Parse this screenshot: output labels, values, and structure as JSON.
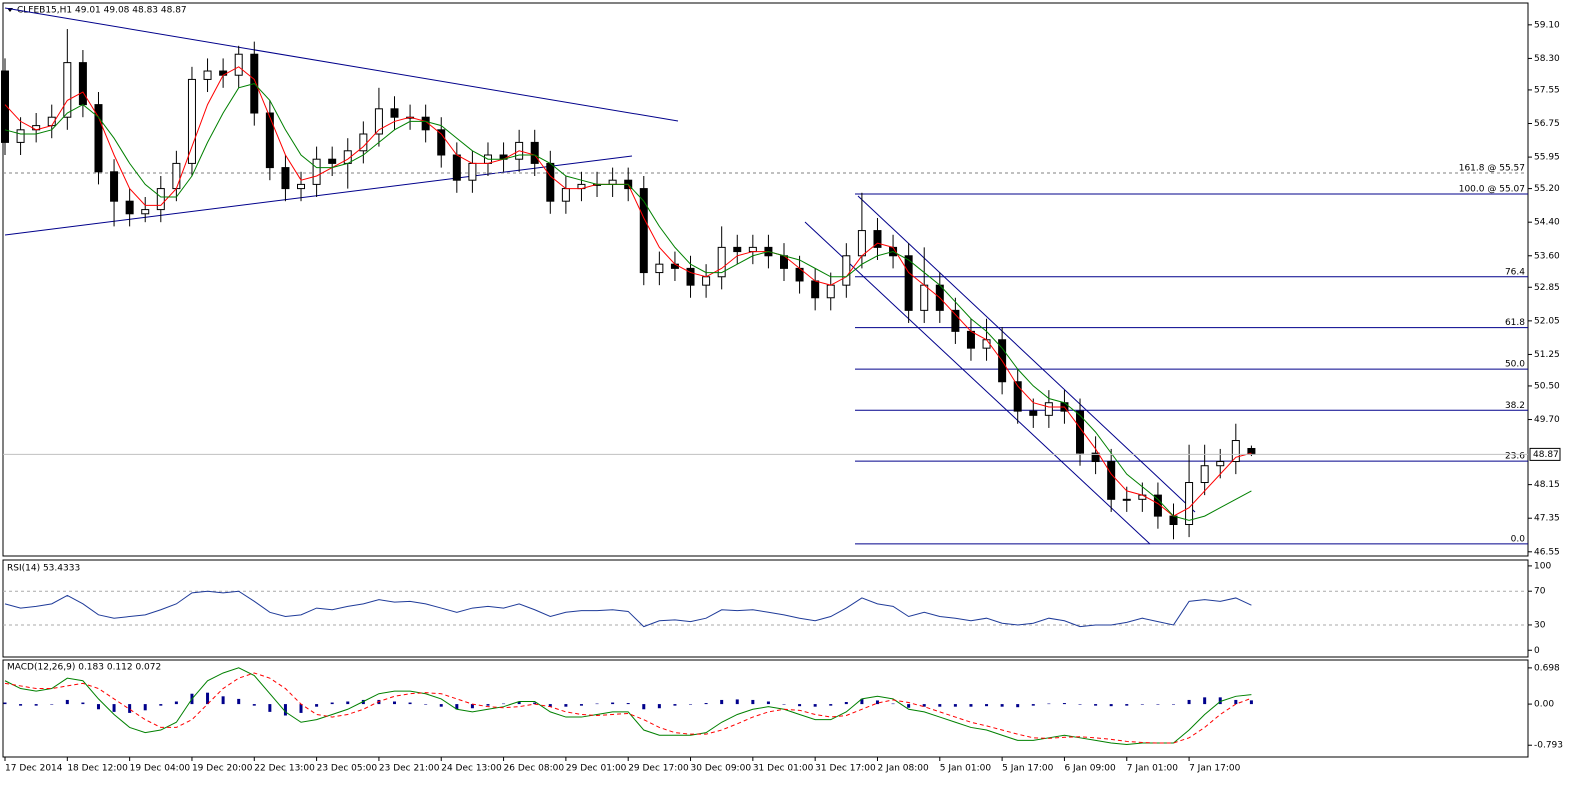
{
  "chart_data": [
    {
      "type": "candlestick",
      "title": "CLFEB15,H1  49.01 49.08 48.83 48.87",
      "categories": [
        "17 Dec 2014",
        null,
        null,
        null,
        "18 Dec 12:00",
        null,
        null,
        null,
        "19 Dec 04:00",
        null,
        null,
        null,
        "19 Dec 20:00",
        null,
        null,
        null,
        "22 Dec 13:00",
        null,
        null,
        null,
        "23 Dec 05:00",
        null,
        null,
        null,
        "23 Dec 21:00",
        null,
        null,
        null,
        "24 Dec 13:00",
        null,
        null,
        null,
        "26 Dec 08:00",
        null,
        null,
        null,
        "29 Dec 01:00",
        null,
        null,
        null,
        "29 Dec 17:00",
        null,
        null,
        null,
        "30 Dec 09:00",
        null,
        null,
        null,
        "31 Dec 01:00",
        null,
        null,
        null,
        "31 Dec 17:00",
        null,
        null,
        null,
        "2 Jan 08:00",
        null,
        null,
        null,
        "5 Jan 01:00",
        null,
        null,
        null,
        "5 Jan 17:00",
        null,
        null,
        null,
        "6 Jan 09:00",
        null,
        null,
        null,
        "7 Jan 01:00",
        null,
        null,
        null,
        "7 Jan 17:00",
        null,
        null,
        null,
        null
      ],
      "open": [
        58.0,
        56.3,
        56.6,
        56.7,
        56.9,
        58.2,
        57.2,
        55.6,
        54.9,
        54.6,
        54.7,
        55.2,
        55.8,
        57.8,
        58.0,
        57.9,
        58.4,
        57.0,
        55.7,
        55.2,
        55.3,
        55.9,
        55.8,
        56.1,
        56.5,
        57.1,
        56.9,
        56.9,
        56.6,
        56.0,
        55.4,
        55.8,
        56.0,
        55.9,
        56.3,
        55.8,
        54.9,
        55.2,
        55.3,
        55.3,
        55.4,
        55.2,
        53.2,
        53.4,
        53.3,
        52.9,
        53.1,
        53.8,
        53.7,
        53.8,
        53.6,
        53.3,
        53.0,
        52.6,
        52.9,
        53.6,
        54.2,
        53.8,
        53.6,
        52.3,
        52.9,
        52.3,
        51.8,
        51.4,
        51.6,
        50.6,
        49.9,
        49.8,
        50.1,
        49.9,
        48.9,
        48.7,
        47.8,
        47.8,
        47.9,
        47.4,
        47.2,
        48.2,
        48.6,
        48.7,
        49.01
      ],
      "high": [
        58.3,
        56.9,
        57.0,
        57.2,
        59.0,
        58.5,
        57.5,
        55.9,
        55.2,
        55.0,
        55.5,
        56.1,
        58.1,
        58.3,
        58.3,
        58.6,
        58.7,
        57.3,
        56.0,
        55.6,
        56.2,
        56.2,
        56.4,
        56.8,
        57.6,
        57.4,
        57.2,
        57.2,
        56.9,
        56.3,
        56.1,
        56.3,
        56.3,
        56.6,
        56.6,
        56.1,
        55.5,
        55.6,
        55.6,
        55.7,
        55.7,
        55.5,
        53.7,
        53.7,
        53.6,
        53.4,
        54.3,
        54.1,
        54.1,
        54.1,
        53.9,
        53.6,
        53.3,
        53.2,
        53.9,
        55.1,
        54.5,
        54.1,
        53.9,
        53.8,
        53.2,
        52.6,
        52.1,
        52.1,
        51.9,
        50.9,
        50.2,
        50.4,
        50.4,
        50.2,
        49.3,
        49.0,
        48.1,
        48.2,
        48.2,
        47.7,
        49.1,
        49.1,
        49.0,
        49.6,
        49.08
      ],
      "low": [
        56.0,
        56.0,
        56.3,
        56.4,
        56.6,
        56.9,
        55.3,
        54.3,
        54.3,
        54.4,
        54.4,
        54.9,
        55.5,
        57.5,
        57.6,
        57.6,
        56.7,
        55.4,
        54.9,
        54.9,
        55.0,
        55.5,
        55.2,
        55.8,
        56.2,
        56.6,
        56.6,
        56.3,
        55.7,
        55.1,
        55.1,
        55.5,
        55.6,
        55.6,
        55.5,
        54.6,
        54.6,
        54.9,
        55.0,
        55.0,
        54.9,
        52.9,
        52.9,
        53.0,
        52.6,
        52.6,
        52.8,
        53.4,
        53.4,
        53.3,
        53.0,
        52.7,
        52.3,
        52.3,
        52.6,
        53.3,
        53.5,
        53.3,
        52.0,
        52.0,
        52.0,
        51.5,
        51.1,
        51.1,
        50.3,
        49.6,
        49.5,
        49.5,
        49.6,
        48.6,
        48.4,
        47.5,
        47.5,
        47.5,
        47.1,
        46.85,
        46.9,
        47.9,
        48.3,
        48.4,
        48.83
      ],
      "close": [
        56.3,
        56.6,
        56.7,
        56.9,
        58.2,
        57.2,
        55.6,
        54.9,
        54.6,
        54.7,
        55.2,
        55.8,
        57.8,
        58.0,
        57.9,
        58.4,
        57.0,
        55.7,
        55.2,
        55.3,
        55.9,
        55.8,
        56.1,
        56.5,
        57.1,
        56.9,
        56.9,
        56.6,
        56.0,
        55.4,
        55.8,
        56.0,
        55.9,
        56.3,
        55.8,
        54.9,
        55.2,
        55.3,
        55.3,
        55.4,
        55.2,
        53.2,
        53.4,
        53.3,
        52.9,
        53.1,
        53.8,
        53.7,
        53.8,
        53.6,
        53.3,
        53.0,
        52.6,
        52.9,
        53.6,
        54.2,
        53.8,
        53.6,
        52.3,
        52.9,
        52.3,
        51.8,
        51.4,
        51.6,
        50.6,
        49.9,
        49.8,
        50.1,
        49.9,
        48.9,
        48.7,
        47.8,
        47.8,
        47.9,
        47.4,
        47.2,
        48.2,
        48.6,
        48.7,
        49.2,
        48.87
      ],
      "overlays": [
        {
          "color": "#ff0000",
          "values": [
            57.2,
            56.8,
            56.6,
            56.7,
            57.3,
            57.5,
            56.9,
            56.0,
            55.2,
            54.8,
            54.8,
            55.2,
            56.2,
            57.2,
            57.9,
            58.1,
            57.8,
            56.9,
            56.0,
            55.4,
            55.5,
            55.7,
            55.9,
            56.2,
            56.6,
            56.8,
            56.9,
            56.8,
            56.5,
            56.0,
            55.8,
            55.8,
            55.9,
            56.1,
            56.0,
            55.5,
            55.2,
            55.2,
            55.3,
            55.3,
            55.3,
            54.5,
            53.8,
            53.4,
            53.2,
            53.1,
            53.3,
            53.6,
            53.7,
            53.7,
            53.6,
            53.3,
            53.0,
            52.9,
            53.1,
            53.6,
            53.9,
            53.8,
            53.2,
            52.9,
            52.6,
            52.2,
            51.8,
            51.6,
            51.1,
            50.5,
            50.1,
            50.0,
            50.0,
            49.5,
            49.0,
            48.4,
            48.0,
            47.9,
            47.7,
            47.4,
            47.6,
            48.0,
            48.4,
            48.8,
            48.9
          ]
        },
        {
          "color": "#008000",
          "values": [
            56.6,
            56.5,
            56.5,
            56.6,
            57.0,
            57.2,
            56.9,
            56.4,
            55.8,
            55.3,
            55.0,
            55.0,
            55.5,
            56.3,
            57.0,
            57.6,
            57.7,
            57.3,
            56.6,
            56.0,
            55.7,
            55.7,
            55.8,
            56.0,
            56.3,
            56.6,
            56.8,
            56.8,
            56.7,
            56.4,
            56.1,
            55.9,
            55.9,
            56.0,
            56.0,
            55.8,
            55.5,
            55.4,
            55.3,
            55.3,
            55.3,
            54.9,
            54.3,
            53.8,
            53.4,
            53.2,
            53.2,
            53.4,
            53.6,
            53.7,
            53.6,
            53.5,
            53.3,
            53.1,
            53.1,
            53.4,
            53.6,
            53.7,
            53.5,
            53.2,
            52.9,
            52.5,
            52.1,
            51.8,
            51.4,
            50.9,
            50.5,
            50.2,
            50.1,
            49.8,
            49.4,
            48.9,
            48.4,
            48.1,
            47.8,
            47.4,
            47.3,
            47.4,
            47.6,
            47.8,
            48.0
          ]
        }
      ],
      "ylim": [
        46.45,
        59.62
      ],
      "yticks": [
        {
          "value": 59.1,
          "label": "59.10"
        },
        {
          "value": 58.3,
          "label": "58.30"
        },
        57.55,
        56.75,
        55.95,
        {
          "value": 55.2,
          "label": "55.20"
        },
        {
          "value": 54.4,
          "label": "54.40"
        },
        {
          "value": 53.6,
          "label": "53.60"
        },
        52.85,
        52.05,
        51.25,
        {
          "value": 50.5,
          "label": "50.50"
        },
        {
          "value": 49.7,
          "label": "49.70"
        },
        48.15,
        47.35,
        46.55
      ],
      "levels": [
        {
          "label": "161.8 @ 55.57",
          "value": 55.57,
          "style": "dashed"
        },
        {
          "label": "100.0 @ 55.07",
          "value": 55.07,
          "style": "solid"
        },
        {
          "label": "76.4",
          "value": 53.1,
          "style": "solid"
        },
        {
          "label": "61.8",
          "value": 51.89,
          "style": "solid"
        },
        {
          "label": "50.0",
          "value": 50.9,
          "style": "solid"
        },
        {
          "label": "38.2",
          "value": 49.92,
          "style": "solid"
        },
        {
          "label": "23.6",
          "value": 48.71,
          "style": "solid"
        },
        {
          "label": "0.0",
          "value": 46.74,
          "style": "solid"
        }
      ]
    },
    {
      "type": "line",
      "title": "RSI(14) 53.4333",
      "color": "#1f3b99",
      "values": [
        55,
        50,
        52,
        55,
        65,
        55,
        42,
        38,
        40,
        42,
        48,
        55,
        68,
        70,
        68,
        70,
        58,
        45,
        40,
        42,
        50,
        48,
        52,
        55,
        60,
        57,
        58,
        55,
        50,
        45,
        50,
        52,
        50,
        55,
        48,
        40,
        45,
        47,
        47,
        48,
        46,
        28,
        35,
        36,
        34,
        38,
        48,
        47,
        48,
        45,
        42,
        38,
        35,
        40,
        50,
        62,
        55,
        52,
        40,
        45,
        40,
        38,
        35,
        38,
        32,
        30,
        32,
        38,
        35,
        28,
        30,
        30,
        33,
        38,
        34,
        30,
        58,
        60,
        58,
        62,
        53.4333
      ],
      "ylim": [
        -8,
        107
      ],
      "yticks": [
        100,
        70,
        30,
        0
      ],
      "levels": [
        70,
        30
      ]
    },
    {
      "type": "macd",
      "title": "MACD(12,26,9) 0.183 0.112 0.072",
      "color": "#00008b",
      "histogram": [
        0.03,
        -0.03,
        -0.03,
        0,
        0.08,
        0.03,
        -0.1,
        -0.15,
        -0.17,
        -0.12,
        -0.03,
        0.05,
        0.2,
        0.22,
        0.15,
        0.1,
        -0.03,
        -0.15,
        -0.22,
        -0.17,
        -0.05,
        0.03,
        0.05,
        0.08,
        0.08,
        0.05,
        0.03,
        -0.01,
        -0.05,
        -0.1,
        -0.08,
        -0.03,
        0.01,
        0.05,
        0.03,
        -0.05,
        -0.05,
        -0.03,
        0.01,
        0.03,
        0.02,
        -0.1,
        -0.08,
        -0.03,
        -0.01,
        0.02,
        0.08,
        0.09,
        0.08,
        0.05,
        0,
        -0.04,
        -0.05,
        -0.03,
        0.04,
        0.1,
        0.07,
        0.01,
        -0.07,
        -0.05,
        -0.05,
        -0.05,
        -0.05,
        -0.04,
        -0.05,
        -0.06,
        -0.03,
        0.01,
        0.02,
        -0.01,
        -0.03,
        -0.04,
        -0.03,
        -0.01,
        0,
        0,
        0.08,
        0.13,
        0.13,
        0.08,
        0.072
      ],
      "series": [
        {
          "color": "#008000",
          "dash": false,
          "values": [
            0.45,
            0.3,
            0.25,
            0.3,
            0.5,
            0.45,
            0.1,
            -0.2,
            -0.45,
            -0.55,
            -0.5,
            -0.35,
            0.1,
            0.45,
            0.6,
            0.7,
            0.55,
            0.2,
            -0.15,
            -0.35,
            -0.3,
            -0.2,
            -0.1,
            0.05,
            0.2,
            0.25,
            0.25,
            0.2,
            0.1,
            -0.1,
            -0.15,
            -0.1,
            -0.05,
            0.05,
            0.05,
            -0.15,
            -0.25,
            -0.25,
            -0.2,
            -0.15,
            -0.15,
            -0.5,
            -0.6,
            -0.6,
            -0.6,
            -0.55,
            -0.35,
            -0.2,
            -0.1,
            -0.05,
            -0.1,
            -0.2,
            -0.3,
            -0.3,
            -0.15,
            0.1,
            0.15,
            0.1,
            -0.1,
            -0.15,
            -0.25,
            -0.35,
            -0.45,
            -0.5,
            -0.6,
            -0.7,
            -0.7,
            -0.65,
            -0.6,
            -0.65,
            -0.7,
            -0.75,
            -0.78,
            -0.75,
            -0.75,
            -0.75,
            -0.5,
            -0.2,
            0.05,
            0.15,
            0.183
          ]
        },
        {
          "color": "#ff0000",
          "dash": true,
          "values": [
            0.4,
            0.35,
            0.3,
            0.3,
            0.35,
            0.4,
            0.3,
            0.1,
            -0.1,
            -0.3,
            -0.45,
            -0.45,
            -0.3,
            0.0,
            0.3,
            0.5,
            0.6,
            0.5,
            0.3,
            0.0,
            -0.2,
            -0.25,
            -0.2,
            -0.1,
            0.05,
            0.15,
            0.2,
            0.22,
            0.2,
            0.1,
            0.0,
            -0.05,
            -0.07,
            -0.05,
            0.0,
            -0.05,
            -0.15,
            -0.2,
            -0.22,
            -0.2,
            -0.18,
            -0.3,
            -0.45,
            -0.55,
            -0.58,
            -0.58,
            -0.5,
            -0.38,
            -0.25,
            -0.15,
            -0.1,
            -0.12,
            -0.2,
            -0.25,
            -0.22,
            -0.1,
            0.02,
            0.08,
            0.03,
            -0.05,
            -0.15,
            -0.25,
            -0.35,
            -0.42,
            -0.5,
            -0.58,
            -0.65,
            -0.66,
            -0.64,
            -0.63,
            -0.65,
            -0.68,
            -0.72,
            -0.74,
            -0.75,
            -0.75,
            -0.65,
            -0.45,
            -0.2,
            0.0,
            0.112
          ]
        }
      ],
      "ylim": [
        -1.02,
        0.85
      ],
      "yticks": [
        0.698,
        {
          "value": 0,
          "label": "0.00"
        },
        -0.793
      ]
    }
  ]
}
